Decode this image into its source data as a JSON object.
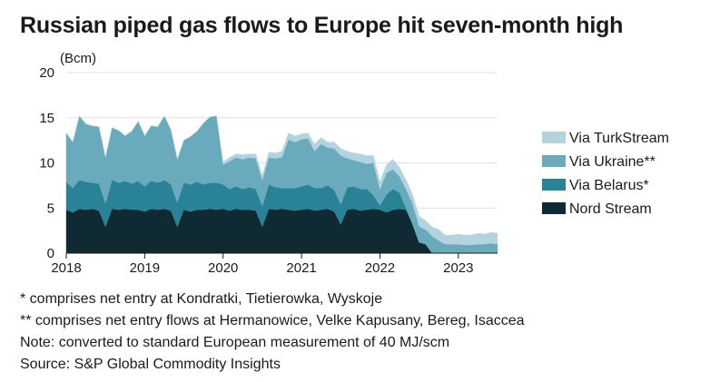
{
  "title": "Russian piped gas flows to Europe hit seven-month high",
  "footnotes": [
    "* comprises net entry at Kondratki, Tietierowka, Wyskoje",
    "** comprises net entry flows at Hermanowice, Velke Kapusany, Bereg, Isaccea",
    "Note: converted to standard European measurement of 40 MJ/scm",
    "Source: S&P Global Commodity Insights"
  ],
  "chart_data": {
    "type": "area",
    "stacked": true,
    "title": "Russian piped gas flows to Europe hit seven-month high",
    "ylabel": "(Bcm)",
    "xlabel": "",
    "ylim": [
      0,
      20
    ],
    "yticks": [
      "0",
      "5",
      "10",
      "15",
      "20"
    ],
    "xticks": [
      "2018",
      "2019",
      "2020",
      "2021",
      "2022",
      "2023"
    ],
    "xlim": [
      "2018-01",
      "2023-07"
    ],
    "grid": true,
    "legend_position": "right",
    "x": [
      "2018-01",
      "2018-02",
      "2018-03",
      "2018-04",
      "2018-05",
      "2018-06",
      "2018-07",
      "2018-08",
      "2018-09",
      "2018-10",
      "2018-11",
      "2018-12",
      "2019-01",
      "2019-02",
      "2019-03",
      "2019-04",
      "2019-05",
      "2019-06",
      "2019-07",
      "2019-08",
      "2019-09",
      "2019-10",
      "2019-11",
      "2019-12",
      "2020-01",
      "2020-02",
      "2020-03",
      "2020-04",
      "2020-05",
      "2020-06",
      "2020-07",
      "2020-08",
      "2020-09",
      "2020-10",
      "2020-11",
      "2020-12",
      "2021-01",
      "2021-02",
      "2021-03",
      "2021-04",
      "2021-05",
      "2021-06",
      "2021-07",
      "2021-08",
      "2021-09",
      "2021-10",
      "2021-11",
      "2021-12",
      "2022-01",
      "2022-02",
      "2022-03",
      "2022-04",
      "2022-05",
      "2022-06",
      "2022-07",
      "2022-08",
      "2022-09",
      "2022-10",
      "2022-11",
      "2022-12",
      "2023-01",
      "2023-02",
      "2023-03",
      "2023-04",
      "2023-05",
      "2023-06",
      "2023-07"
    ],
    "series": [
      {
        "name": "Nord Stream",
        "color": "#0f2a33",
        "values": [
          4.8,
          4.5,
          4.9,
          4.8,
          4.9,
          4.7,
          2.9,
          4.9,
          4.8,
          4.9,
          4.8,
          4.8,
          4.6,
          4.9,
          4.8,
          4.9,
          4.7,
          2.9,
          4.8,
          4.6,
          4.8,
          4.8,
          4.9,
          4.8,
          4.9,
          4.7,
          4.9,
          4.8,
          4.8,
          4.7,
          2.9,
          4.9,
          4.8,
          4.9,
          4.8,
          4.7,
          4.8,
          4.9,
          4.7,
          4.8,
          4.9,
          4.6,
          3.2,
          4.8,
          4.9,
          4.7,
          4.8,
          4.9,
          4.8,
          4.5,
          4.8,
          4.9,
          4.8,
          3.2,
          1.2,
          1.0,
          0.0,
          0.0,
          0.0,
          0.0,
          0.0,
          0.0,
          0.0,
          0.0,
          0.0,
          0.0,
          0.0
        ]
      },
      {
        "name": "Via Belarus*",
        "color": "#2a8296",
        "values": [
          3.1,
          2.7,
          3.2,
          3.1,
          2.9,
          3.0,
          2.6,
          3.2,
          3.0,
          3.1,
          2.9,
          3.2,
          2.8,
          3.1,
          3.0,
          3.2,
          2.9,
          2.7,
          3.0,
          3.0,
          3.1,
          2.8,
          2.9,
          3.0,
          2.7,
          2.4,
          2.5,
          2.3,
          2.5,
          2.4,
          2.3,
          2.7,
          2.5,
          2.3,
          2.4,
          2.5,
          2.6,
          2.7,
          2.5,
          2.4,
          2.6,
          2.4,
          2.2,
          2.5,
          2.5,
          2.4,
          2.3,
          1.5,
          0.5,
          2.0,
          2.3,
          1.8,
          0.2,
          0.0,
          0.0,
          0.0,
          0.0,
          0.0,
          0.0,
          0.0,
          0.0,
          0.0,
          0.0,
          0.0,
          0.0,
          0.0,
          0.0
        ]
      },
      {
        "name": "Via Ukraine**",
        "color": "#6aaabd",
        "values": [
          5.4,
          5.1,
          7.1,
          6.4,
          6.3,
          6.3,
          5.1,
          5.8,
          5.8,
          5.0,
          5.8,
          6.6,
          5.6,
          6.1,
          6.2,
          7.1,
          6.1,
          4.8,
          4.7,
          5.3,
          5.6,
          6.8,
          7.3,
          7.4,
          2.2,
          3.1,
          3.2,
          3.3,
          3.3,
          3.4,
          2.9,
          3.0,
          3.2,
          3.4,
          5.4,
          5.1,
          5.2,
          5.1,
          4.1,
          4.9,
          4.2,
          4.6,
          5.4,
          3.2,
          2.9,
          3.0,
          2.8,
          3.6,
          1.8,
          2.4,
          2.2,
          1.8,
          2.1,
          2.3,
          1.8,
          1.6,
          1.9,
          1.4,
          1.0,
          1.0,
          1.0,
          0.9,
          0.9,
          1.0,
          1.0,
          1.1,
          1.0
        ]
      },
      {
        "name": "Via TurkStream",
        "color": "#b3d3de",
        "values": [
          0,
          0,
          0,
          0,
          0,
          0,
          0,
          0,
          0,
          0,
          0,
          0,
          0,
          0,
          0,
          0,
          0,
          0,
          0,
          0,
          0,
          0,
          0,
          0,
          0.3,
          0.4,
          0.4,
          0.5,
          0.4,
          0.5,
          0.5,
          0.6,
          0.6,
          0.7,
          0.7,
          0.7,
          0.6,
          0.6,
          0.8,
          0.7,
          0.6,
          0.7,
          0.8,
          0.8,
          0.8,
          0.9,
          0.9,
          0.8,
          0.8,
          0.9,
          1.1,
          1.0,
          1.0,
          1.0,
          1.1,
          1.0,
          1.0,
          1.2,
          1.0,
          1.0,
          1.1,
          1.1,
          1.1,
          1.2,
          1.1,
          1.2,
          1.2
        ]
      }
    ]
  }
}
